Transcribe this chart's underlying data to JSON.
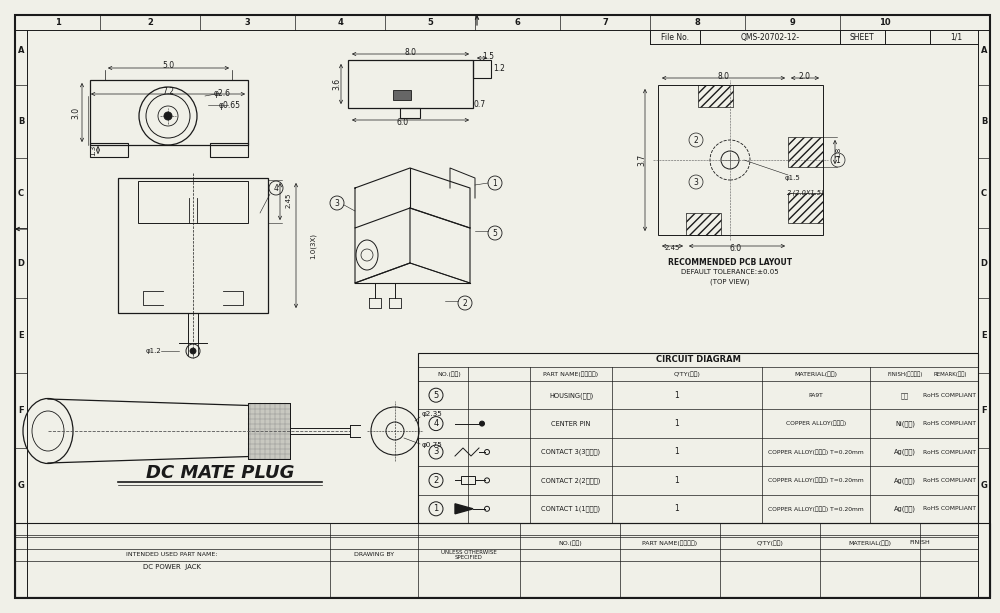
{
  "bg_color": "#f0f0e8",
  "line_color": "#1a1a1a",
  "file_no": "QMS-20702-12-",
  "sheet": "1/1",
  "drawing_title": "DC MATE PLUG",
  "circuit_diagram_title": "CIRCUIT DIAGRAM",
  "table_rows": [
    [
      "5",
      "HOUSING(基座)",
      "1",
      "PA9T",
      "黑色",
      "RoHS COMPLIANT"
    ],
    [
      "4",
      "CENTER PIN",
      "1",
      "COPPER ALLOY(铜合金)",
      "Ni(镀镍)",
      "RoHS COMPLIANT"
    ],
    [
      "3",
      "CONTACT 3(3号端子)",
      "1",
      "COPPER ALLOY(铜合金) T=0.20mm",
      "Ag(镀银)",
      "RoHS COMPLIANT"
    ],
    [
      "2",
      "CONTACT 2(2号端子)",
      "1",
      "COPPER ALLOY(铜合金) T=0.20mm",
      "Ag(镀银)",
      "RoHS COMPLIANT"
    ],
    [
      "1",
      "CONTACT 1(1号端子)",
      "1",
      "COPPER ALLOY(铜合金) T=0.20mm",
      "Ag(镀银)",
      "RoHS COMPLIANT"
    ]
  ],
  "pcb_text": [
    "RECOMMENDED PCB LAYOUT",
    "DEFAULT TOLERANCE:±0.05",
    "(TOP VIEW)"
  ]
}
